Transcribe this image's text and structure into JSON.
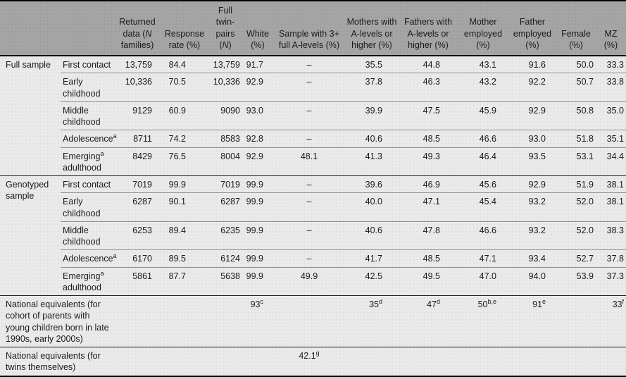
{
  "table": {
    "column_headers": [
      "",
      "",
      "Returned data (N families)",
      "Response rate (%)",
      "Full twin-pairs (N)",
      "White (%)",
      "Sample with 3+ full A-levels (%)",
      "Mothers with A-levels or higher (%)",
      "Fathers with A-levels or higher (%)",
      "Mother employed (%)",
      "Father employed (%)",
      "Female (%)",
      "MZ (%)"
    ],
    "sections": [
      {
        "label": "Full sample",
        "rows": [
          {
            "stage": "First contact",
            "values": [
              "13,759",
              "84.4",
              "13,759",
              "91.7",
              "–",
              "35.5",
              "44.8",
              "43.1",
              "91.6",
              "50.0",
              "33.3"
            ]
          },
          {
            "stage": "Early childhood",
            "values": [
              "10,336",
              "70.5",
              "10,336",
              "92.9",
              "–",
              "37.8",
              "46.3",
              "43.2",
              "92.2",
              "50.7",
              "33.8"
            ]
          },
          {
            "stage": "Middle childhood",
            "values": [
              "9129",
              "60.9",
              "9090",
              "93.0",
              "–",
              "39.9",
              "47.5",
              "45.9",
              "92.9",
              "50.8",
              "35.0"
            ]
          },
          {
            "stage": "Adolescence^a",
            "values": [
              "8711",
              "74.2",
              "8583",
              "92.8",
              "–",
              "40.6",
              "48.5",
              "46.6",
              "93.0",
              "51.8",
              "35.1"
            ]
          },
          {
            "stage": "Emerging^a adulthood",
            "values": [
              "8429",
              "76.5",
              "8004",
              "92.9",
              "48.1",
              "41.3",
              "49.3",
              "46.4",
              "93.5",
              "53.1",
              "34.4"
            ]
          }
        ]
      },
      {
        "label": "Genotyped sample",
        "rows": [
          {
            "stage": "First contact",
            "values": [
              "7019",
              "99.9",
              "7019",
              "99.9",
              "–",
              "39.6",
              "46.9",
              "45.6",
              "92.9",
              "51.9",
              "38.1"
            ]
          },
          {
            "stage": "Early childhood",
            "values": [
              "6287",
              "90.1",
              "6287",
              "99.9",
              "–",
              "40.0",
              "47.1",
              "45.4",
              "93.2",
              "52.0",
              "38.1"
            ]
          },
          {
            "stage": "Middle childhood",
            "values": [
              "6253",
              "89.4",
              "6235",
              "99.9",
              "–",
              "40.6",
              "47.8",
              "46.6",
              "93.2",
              "52.0",
              "38.3"
            ]
          },
          {
            "stage": "Adolescence^a",
            "values": [
              "6170",
              "89.5",
              "6124",
              "99.9",
              "–",
              "41.7",
              "48.5",
              "47.1",
              "93.4",
              "52.7",
              "37.8"
            ]
          },
          {
            "stage": "Emerging^a adulthood",
            "values": [
              "5861",
              "87.7",
              "5638",
              "99.9",
              "49.9",
              "42.5",
              "49.5",
              "47.0",
              "94.0",
              "53.9",
              "37.3"
            ]
          }
        ]
      }
    ],
    "footer_rows": [
      {
        "label": "National equivalents (for cohort of parents with young children born in late 1990s, early 2000s)",
        "values": [
          "",
          "",
          "",
          "93^c",
          "",
          "35^d",
          "47^d",
          "50^b,e",
          "91^e",
          "",
          "33^f"
        ]
      },
      {
        "label": "National equivalents (for twins themselves)",
        "values": [
          "",
          "",
          "",
          "",
          "42.1^g",
          "",
          "",
          "",
          "",
          "",
          ""
        ]
      }
    ],
    "colors": {
      "header_background": "#a5a5a5",
      "body_background": "#eaeaea",
      "rule_dark": "#000000",
      "rule_light": "#8f8f8f",
      "text": "#1b1b1b"
    }
  }
}
